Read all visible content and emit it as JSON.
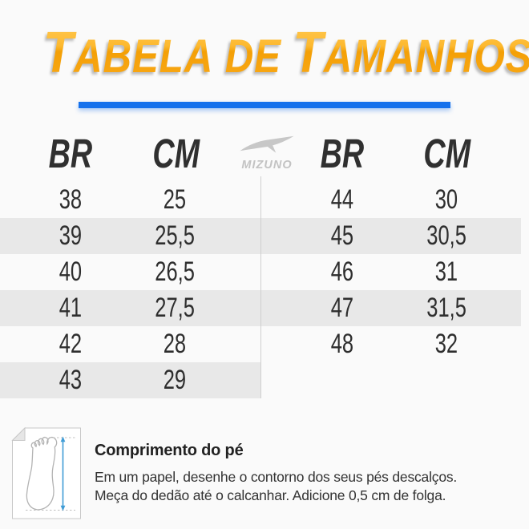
{
  "page": {
    "background": "#fafafa"
  },
  "title": {
    "word1_initial": "T",
    "word1_rest": "ABELA",
    "word2": "DE",
    "word3_initial": "T",
    "word3_rest": "AMANHOS",
    "color": "#f8a51b"
  },
  "accent_rule": {
    "color": "#1571ec"
  },
  "brand": {
    "logo_text": "MIZUNO",
    "logo_icon": "runbird",
    "color": "#c6c6c6"
  },
  "size_table": {
    "stripe_color": "#e8e8e8",
    "text_color": "#2e2e2e",
    "left": {
      "headers": [
        "BR",
        "CM"
      ],
      "rows": [
        [
          "38",
          "25"
        ],
        [
          "39",
          "25,5"
        ],
        [
          "40",
          "26,5"
        ],
        [
          "41",
          "27,5"
        ],
        [
          "42",
          "28"
        ],
        [
          "43",
          "29"
        ]
      ]
    },
    "right": {
      "headers": [
        "BR",
        "CM"
      ],
      "rows": [
        [
          "44",
          "30"
        ],
        [
          "45",
          "30,5"
        ],
        [
          "46",
          "31"
        ],
        [
          "47",
          "31,5"
        ],
        [
          "48",
          "32"
        ]
      ]
    }
  },
  "footnote": {
    "title": "Comprimento do pé",
    "line1": "Em um papel, desenhe o contorno dos seus pés descalços.",
    "line2": "Meça do dedão até o calcanhar. Adicione 0,5 cm de folga.",
    "arrow_color": "#3f9cd6"
  }
}
